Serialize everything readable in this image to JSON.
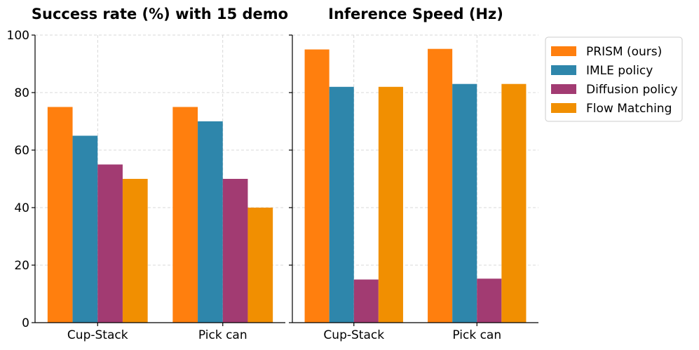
{
  "chart_data": [
    {
      "type": "bar",
      "title": "Success rate (%) with 15 demo",
      "categories": [
        "Cup-Stack",
        "Pick can"
      ],
      "series": [
        {
          "name": "PRISM (ours)",
          "values": [
            75,
            75
          ]
        },
        {
          "name": "IMLE policy",
          "values": [
            65,
            70
          ]
        },
        {
          "name": "Diffusion policy",
          "values": [
            55,
            50
          ]
        },
        {
          "name": "Flow Matching",
          "values": [
            50,
            40
          ]
        }
      ],
      "ylim": [
        0,
        100
      ],
      "yticks": [
        "0",
        "20",
        "40",
        "60",
        "80",
        "100"
      ],
      "grid": true,
      "xlabel": "",
      "ylabel": ""
    },
    {
      "type": "bar",
      "title": "Inference Speed (Hz)",
      "categories": [
        "Cup-Stack",
        "Pick can"
      ],
      "series": [
        {
          "name": "PRISM (ours)",
          "values": [
            95,
            95.2
          ]
        },
        {
          "name": "IMLE policy",
          "values": [
            82,
            83
          ]
        },
        {
          "name": "Diffusion policy",
          "values": [
            15,
            15.3
          ]
        },
        {
          "name": "Flow Matching",
          "values": [
            82,
            83
          ]
        }
      ],
      "ylim": [
        0,
        100
      ],
      "grid": true,
      "xlabel": "",
      "ylabel": ""
    }
  ],
  "legend": {
    "placement": "right",
    "entries": [
      "PRISM (ours)",
      "IMLE policy",
      "Diffusion policy",
      "Flow Matching"
    ]
  },
  "colors": {
    "series": [
      "#ff7f0e",
      "#2e86ab",
      "#a23b72",
      "#f18f01"
    ]
  }
}
